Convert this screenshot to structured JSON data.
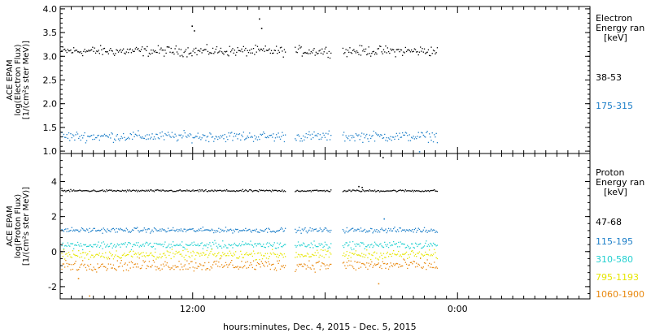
{
  "xlabel": "hours:minutes, Dec.  4, 2015 - Dec.  5, 2015",
  "x_ticks": [
    "12:00",
    "0:00"
  ],
  "chart_data": [
    {
      "type": "scatter",
      "title": "",
      "ylabel_lines": [
        "ACE EPAM",
        "log(Electron Flux)",
        "[1/(cm²s ster MeV)]"
      ],
      "legend_title_lines": [
        "Electron",
        "Energy ran",
        "[keV]"
      ],
      "ylim": [
        0.95,
        4.05
      ],
      "yticks": [
        "1.0",
        "1.5",
        "2.0",
        "2.5",
        "3.0",
        "3.5",
        "4.0"
      ],
      "ytick_values": [
        1.0,
        1.5,
        2.0,
        2.5,
        3.0,
        3.5,
        4.0
      ],
      "xrange_hours": [
        0,
        48
      ],
      "gaps_hours": [
        [
          20.4,
          21.2
        ],
        [
          24.5,
          25.5
        ]
      ],
      "data_end_hours": [
        34.2
      ],
      "series": [
        {
          "name": "38-53",
          "color": "#000000",
          "base": 3.12,
          "noise": 0.09,
          "spikes": [
            {
              "x": 11.9,
              "y": 3.65
            },
            {
              "x": 12.1,
              "y": 3.55
            },
            {
              "x": 18.0,
              "y": 3.8
            },
            {
              "x": 18.2,
              "y": 3.6
            }
          ]
        },
        {
          "name": "175-315",
          "color": "#1c7ec8",
          "base": 1.32,
          "noise": 0.09,
          "spikes": [
            {
              "x": 32.5,
              "y": 1.0
            }
          ]
        }
      ]
    },
    {
      "type": "scatter",
      "title": "",
      "ylabel_lines": [
        "ACE EPAM",
        "log(Proton Flux)",
        "[1/(cm²s ster MeV)]"
      ],
      "legend_title_lines": [
        "Proton",
        "Energy ran",
        "[keV]"
      ],
      "ylim": [
        -2.7,
        5.6
      ],
      "yticks": [
        "-2",
        "0",
        "2",
        "4"
      ],
      "ytick_values": [
        -2,
        0,
        2,
        4
      ],
      "xrange_hours": [
        0,
        48
      ],
      "gaps_hours": [
        [
          20.4,
          21.2
        ],
        [
          24.5,
          25.5
        ]
      ],
      "data_end_hours": [
        34.2
      ],
      "series": [
        {
          "name": "47-68",
          "color": "#000000",
          "base": 3.5,
          "noise": 0.05,
          "spikes": [
            {
              "x": 29.2,
              "y": 5.4
            },
            {
              "x": 27.0,
              "y": 3.75
            },
            {
              "x": 27.3,
              "y": 3.7
            }
          ]
        },
        {
          "name": "115-195",
          "color": "#1c7ec8",
          "base": 1.25,
          "noise": 0.12,
          "spikes": [
            {
              "x": 29.3,
              "y": 1.9
            }
          ]
        },
        {
          "name": "310-580",
          "color": "#22d0d0",
          "base": 0.4,
          "noise": 0.18,
          "spikes": []
        },
        {
          "name": "795-1193",
          "color": "#e6e600",
          "base": -0.15,
          "noise": 0.22,
          "spikes": []
        },
        {
          "name": "1060-1900",
          "color": "#e8880e",
          "base": -0.75,
          "noise": 0.28,
          "spikes": [
            {
              "x": 2.6,
              "y": -2.5
            },
            {
              "x": 28.8,
              "y": -1.8
            },
            {
              "x": 1.6,
              "y": -1.5
            }
          ]
        }
      ]
    }
  ]
}
